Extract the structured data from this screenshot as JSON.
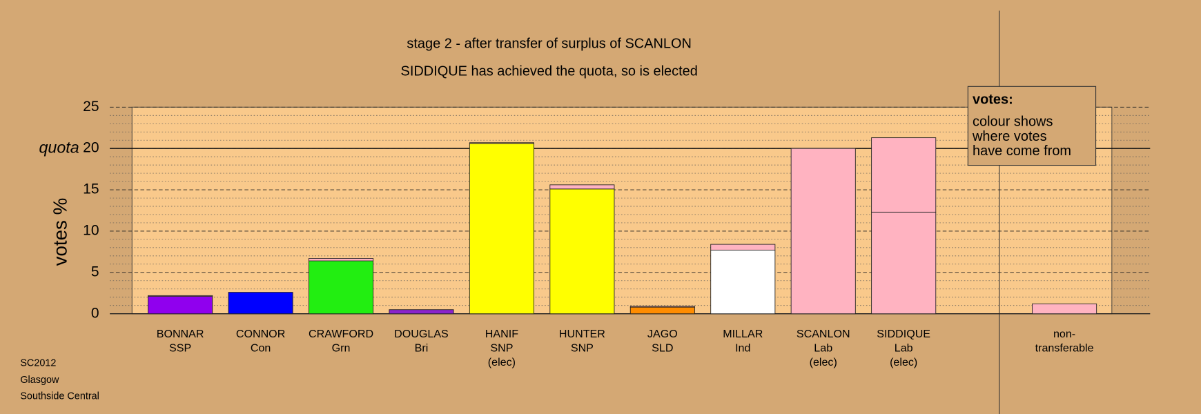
{
  "chart_data": {
    "type": "stacked_bar",
    "title": "stage 2 - after transfer of surplus of SCANLON",
    "subtitle": "SIDDIQUE has achieved the quota, so is elected",
    "y_label": "votes %",
    "categories": [
      [
        "BONNAR",
        "SSP"
      ],
      [
        "CONNOR",
        "Con"
      ],
      [
        "CRAWFORD",
        "Grn"
      ],
      [
        "DOUGLAS",
        "Bri"
      ],
      [
        "HANIF",
        "SNP",
        "(elec)"
      ],
      [
        "HUNTER",
        "SNP"
      ],
      [
        "JAGO",
        "SLD"
      ],
      [
        "MILLAR",
        "Ind"
      ],
      [
        "SCANLON",
        "Lab",
        "(elec)"
      ],
      [
        "SIDDIQUE",
        "Lab",
        "(elec)"
      ],
      [
        "non-",
        "transferable"
      ]
    ],
    "series": [
      {
        "colors": [
          "#9000ee",
          "#0000ff",
          "#22ee11",
          "#8a22cc",
          "#ffff00",
          "#ffff00",
          "#ff8c00",
          "#ffffff",
          "#ffb3c1",
          "#ffb3c1",
          "#ffb3c1"
        ],
        "values": [
          2.1,
          2.6,
          6.4,
          0.5,
          20.6,
          15.1,
          0.8,
          7.7,
          20.0,
          12.3,
          1.2
        ]
      },
      {
        "color": "#ffb3c1",
        "values": [
          0.1,
          0,
          0.3,
          0,
          0.1,
          0.5,
          0.1,
          0.7,
          0,
          9.0,
          0
        ]
      }
    ],
    "ylim": [
      0,
      25
    ],
    "yticks": [
      0,
      5,
      10,
      15,
      20,
      25
    ],
    "yminorticks": [
      1,
      2,
      3,
      4,
      6,
      7,
      8,
      9,
      11,
      12,
      13,
      14,
      16,
      17,
      18,
      19,
      21,
      22,
      23,
      24
    ],
    "quota": {
      "value": 20,
      "label": "quota"
    },
    "note": {
      "heading": "votes:",
      "lines": [
        "colour shows",
        "where votes",
        "have come from"
      ]
    },
    "footer": [
      "SC2012",
      "Glasgow",
      "Southside Central"
    ]
  }
}
